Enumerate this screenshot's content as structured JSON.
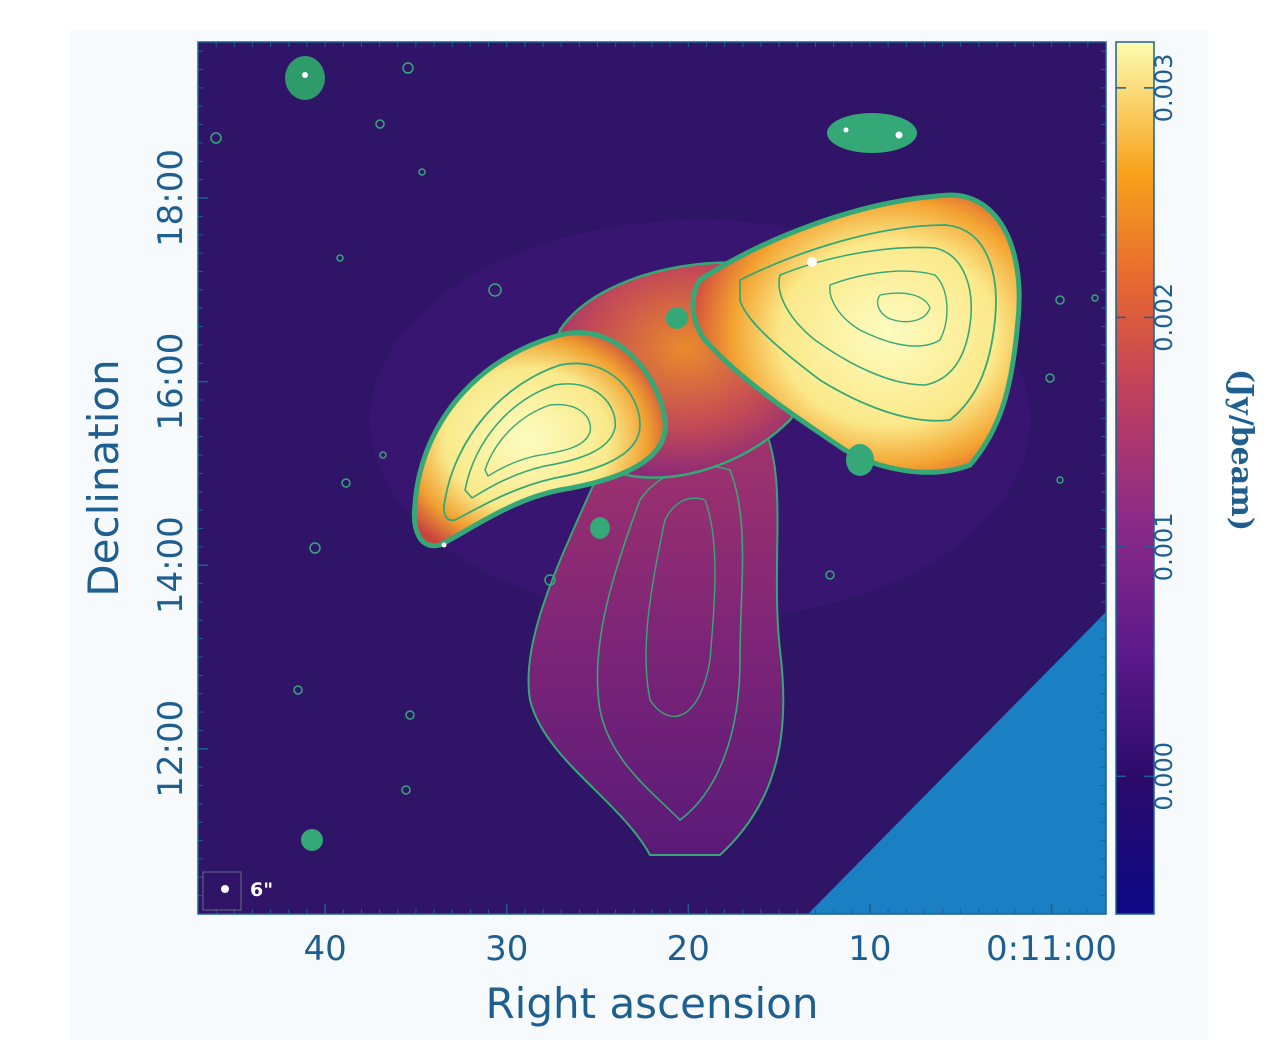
{
  "chart_data": {
    "type": "heatmap",
    "title": "",
    "xlabel": "Right ascension",
    "ylabel": "Declination",
    "x_ticks": [
      {
        "value": 40,
        "label": "40"
      },
      {
        "value": 30,
        "label": "30"
      },
      {
        "value": 20,
        "label": "20"
      },
      {
        "value": 10,
        "label": "10"
      },
      {
        "value": 0,
        "label": "0:11:00"
      }
    ],
    "xlim": [
      47,
      -3
    ],
    "y_ticks": [
      {
        "value": 12,
        "label": "12:00"
      },
      {
        "value": 14,
        "label": "14:00"
      },
      {
        "value": 16,
        "label": "16:00"
      },
      {
        "value": 18,
        "label": "18:00"
      }
    ],
    "ylim": [
      10.2,
      19.7
    ],
    "colorbar": {
      "label": "(Jy/beam)",
      "ticks": [
        {
          "value": 0.0,
          "label": "0.000"
        },
        {
          "value": 0.001,
          "label": "0.001"
        },
        {
          "value": 0.002,
          "label": "0.002"
        },
        {
          "value": 0.003,
          "label": "0.003"
        }
      ],
      "range": [
        -0.0006,
        0.0032
      ],
      "colormap": "plasma"
    },
    "beam_label": "6\"",
    "colors": {
      "background": "#2f1468",
      "contour": "#34a877",
      "axis": "#1f5f8f",
      "masked": "#1a7fc3"
    }
  }
}
